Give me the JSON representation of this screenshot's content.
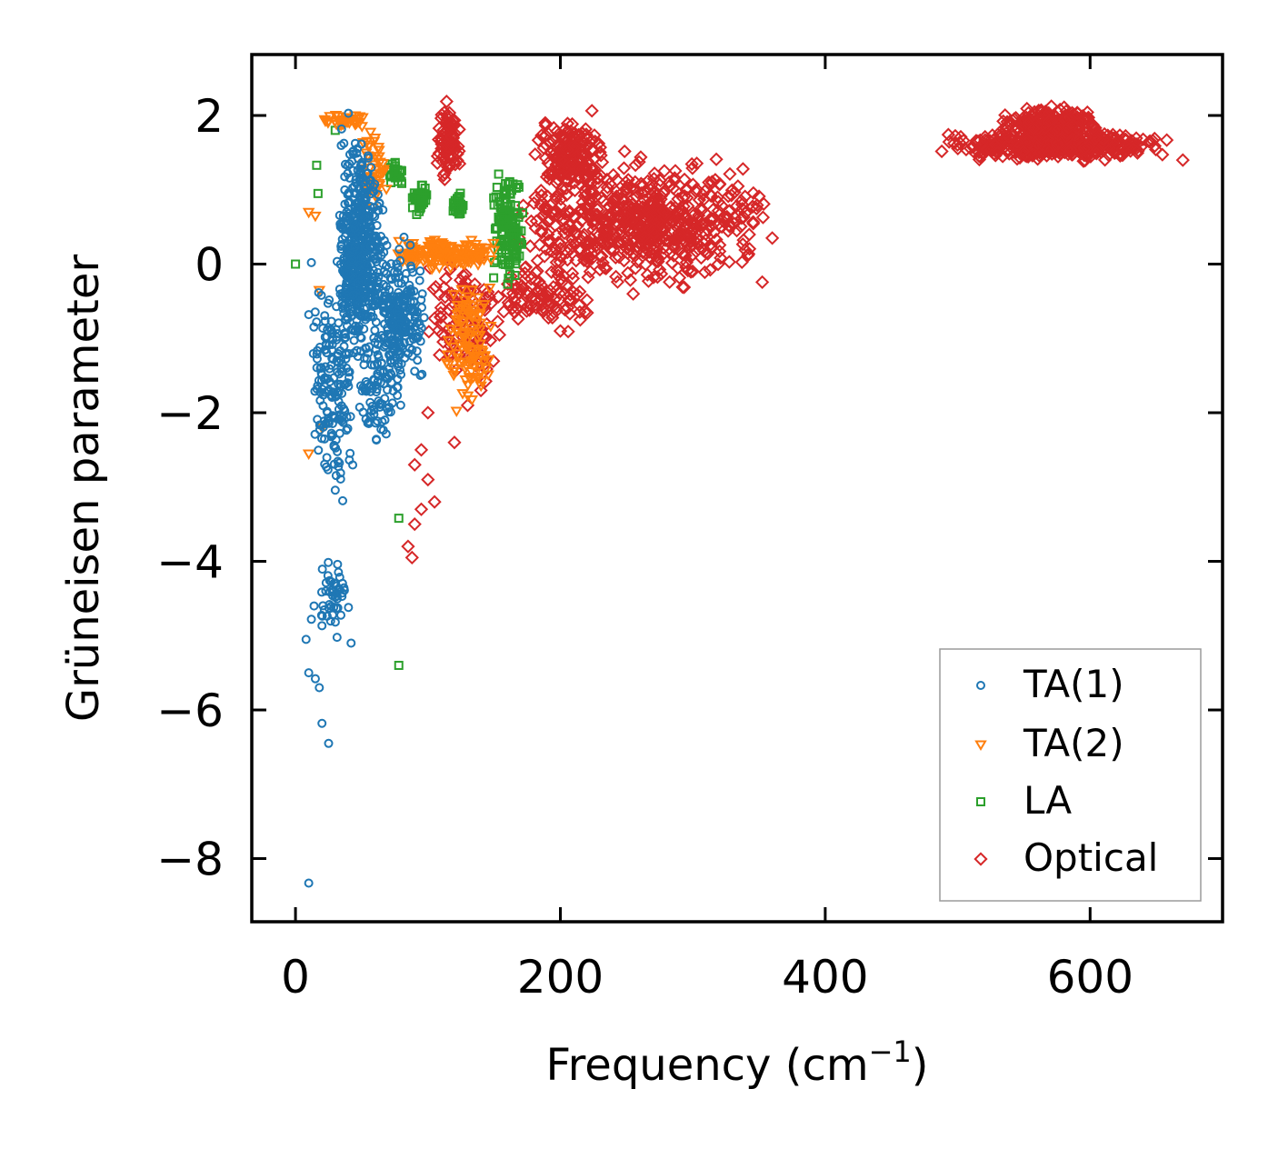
{
  "chart_data": {
    "type": "scatter",
    "title": "",
    "xlabel": "Frequency (cm",
    "xlabel_sup": "−1",
    "xlabel_suffix": ")",
    "ylabel": "Grüneisen parameter",
    "xlim": [
      -33,
      700
    ],
    "ylim": [
      -8.85,
      2.82
    ],
    "xticks": [
      0,
      200,
      400,
      600
    ],
    "xtick_labels": [
      "0",
      "200",
      "400",
      "600"
    ],
    "yticks": [
      2,
      0,
      -2,
      -4,
      -6,
      -8
    ],
    "ytick_labels": [
      "2",
      "0",
      "−2",
      "−4",
      "−6",
      "−8"
    ],
    "grid": false,
    "legend_position": "lower-right",
    "series": [
      {
        "name": "TA(1)",
        "marker": "circle",
        "color": "#1f77b4",
        "clusters": [
          {
            "x": [
              30,
              68
            ],
            "y": [
              -1.6,
              2.0
            ],
            "n": 500
          },
          {
            "x": [
              58,
              98
            ],
            "y": [
              -2.0,
              0.5
            ],
            "n": 220
          },
          {
            "x": [
              12,
              45
            ],
            "y": [
              -3.5,
              0.2
            ],
            "n": 170
          },
          {
            "x": [
              45,
              80
            ],
            "y": [
              -2.7,
              -0.6
            ],
            "n": 90
          },
          {
            "x": [
              15,
              40
            ],
            "y": [
              -5.4,
              -3.6
            ],
            "n": 45
          }
        ],
        "points": [
          [
            10,
            -8.33
          ],
          [
            25,
            -6.45
          ],
          [
            20,
            -6.18
          ],
          [
            18,
            -5.7
          ],
          [
            15,
            -5.58
          ],
          [
            10,
            -5.5
          ],
          [
            12,
            -4.78
          ],
          [
            14,
            -4.6
          ],
          [
            40,
            -4.62
          ],
          [
            42,
            -5.1
          ],
          [
            8,
            -5.05
          ],
          [
            10,
            -0.68
          ],
          [
            12,
            0.02
          ],
          [
            40,
            2.03
          ]
        ]
      },
      {
        "name": "TA(2)",
        "marker": "triangle-down",
        "color": "#ff7f0e",
        "clusters": [
          {
            "x": [
              70,
              152
            ],
            "y": [
              -0.1,
              0.4
            ],
            "n": 160
          },
          {
            "x": [
              112,
              152
            ],
            "y": [
              -2.2,
              0.2
            ],
            "n": 110
          },
          {
            "x": [
              48,
              72
            ],
            "y": [
              0.5,
              1.9
            ],
            "n": 50
          },
          {
            "x": [
              20,
              60
            ],
            "y": [
              1.8,
              2.05
            ],
            "n": 35
          }
        ],
        "points": [
          [
            10,
            -2.55
          ],
          [
            20,
            -2.2
          ],
          [
            10,
            0.7
          ],
          [
            15,
            0.65
          ],
          [
            18,
            -0.35
          ],
          [
            45,
            2.0
          ],
          [
            60,
            1.7
          ]
        ]
      },
      {
        "name": "LA",
        "marker": "square",
        "color": "#2ca02c",
        "clusters": [
          {
            "x": [
              148,
              172
            ],
            "y": [
              -0.5,
              1.45
            ],
            "n": 140
          },
          {
            "x": [
              88,
              100
            ],
            "y": [
              0.65,
              1.1
            ],
            "n": 45
          },
          {
            "x": [
              118,
              128
            ],
            "y": [
              0.6,
              1.0
            ],
            "n": 30
          },
          {
            "x": [
              68,
              82
            ],
            "y": [
              1.0,
              1.45
            ],
            "n": 25
          }
        ],
        "points": [
          [
            78,
            -3.42
          ],
          [
            78,
            -5.4
          ],
          [
            0,
            0.0
          ],
          [
            16,
            1.33
          ],
          [
            17,
            0.95
          ],
          [
            30,
            1.8
          ]
        ]
      },
      {
        "name": "Optical",
        "marker": "diamond",
        "color": "#d62728",
        "clusters": [
          {
            "x": [
              165,
              360
            ],
            "y": [
              -0.5,
              1.6
            ],
            "n": 650
          },
          {
            "x": [
              180,
              235
            ],
            "y": [
              0.8,
              2.1
            ],
            "n": 180
          },
          {
            "x": [
              105,
              125
            ],
            "y": [
              1.0,
              2.3
            ],
            "n": 80
          },
          {
            "x": [
              100,
              160
            ],
            "y": [
              -1.8,
              0.3
            ],
            "n": 120
          },
          {
            "x": [
              150,
              225
            ],
            "y": [
              -1.1,
              0.2
            ],
            "n": 90
          },
          {
            "x": [
              485,
              665
            ],
            "y": [
              1.35,
              1.85
            ],
            "n": 420
          },
          {
            "x": [
              530,
              610
            ],
            "y": [
              1.6,
              2.2
            ],
            "n": 200
          }
        ],
        "points": [
          [
            90,
            -2.7
          ],
          [
            100,
            -2.9
          ],
          [
            105,
            -3.2
          ],
          [
            95,
            -3.3
          ],
          [
            90,
            -3.5
          ],
          [
            85,
            -3.8
          ],
          [
            88,
            -3.95
          ],
          [
            95,
            -2.5
          ],
          [
            100,
            -2.0
          ],
          [
            120,
            -2.4
          ],
          [
            130,
            -1.9
          ],
          [
            140,
            -1.7
          ],
          [
            670,
            1.4
          ],
          [
            360,
            0.35
          ],
          [
            200,
            -0.9
          ],
          [
            215,
            -0.75
          ],
          [
            255,
            -0.4
          ]
        ]
      }
    ]
  }
}
